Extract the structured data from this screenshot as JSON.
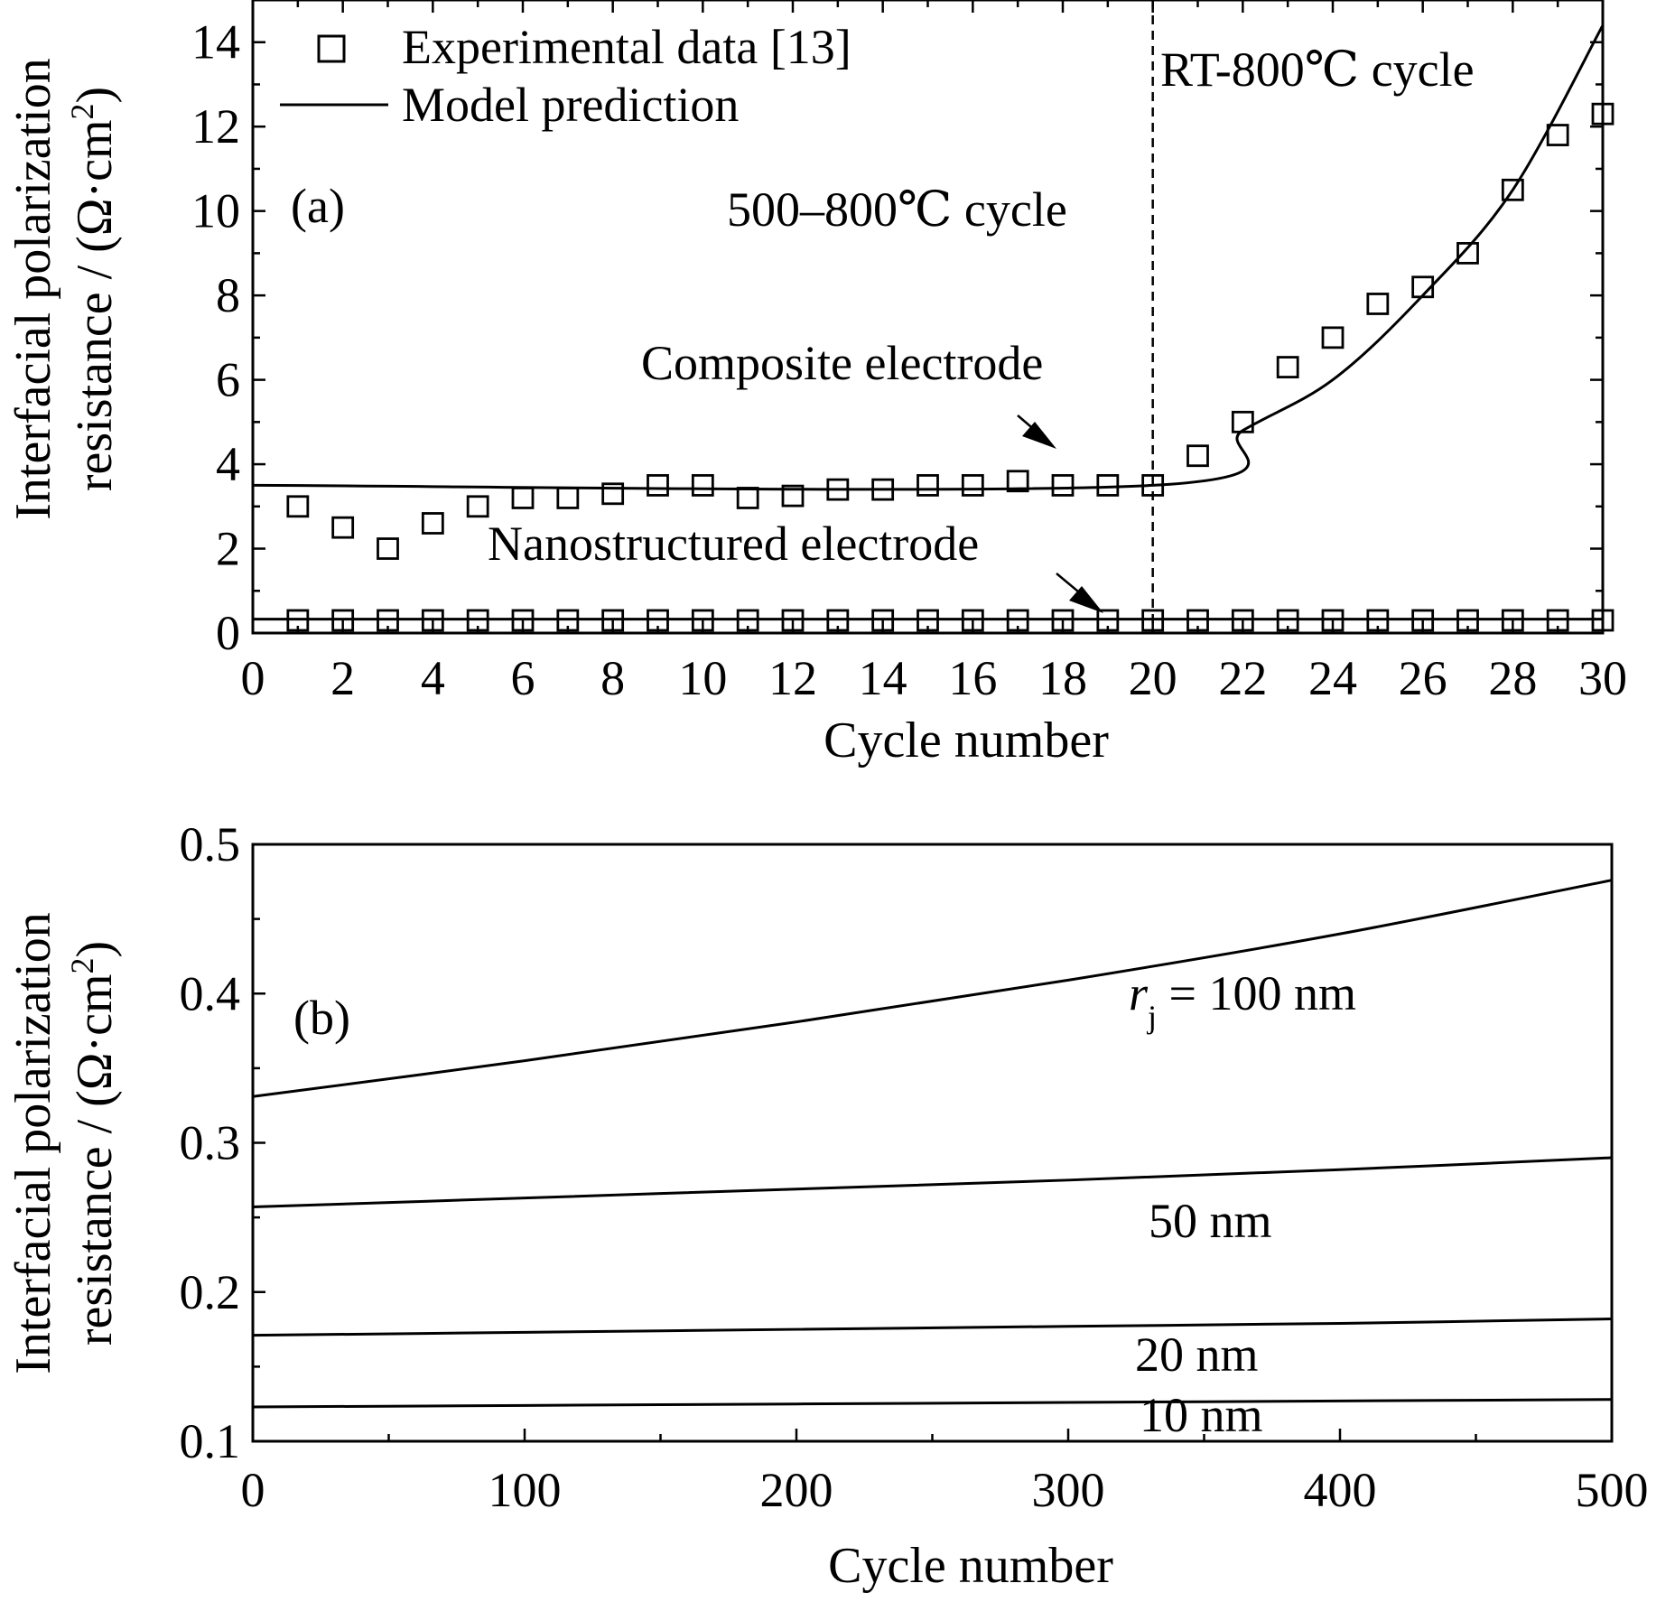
{
  "chart_data": [
    {
      "panel": "(a)",
      "type": "scatter",
      "xlabel": "Cycle number",
      "ylabel": "Interfacial polarization resistance / (Ω·cm²)",
      "ylabel_line1": "Interfacial polarization",
      "ylabel_line2": "resistance / (Ω·cm",
      "ylabel_sup": "2",
      "ylabel_close": ")",
      "xlim": [
        0,
        30
      ],
      "ylim": [
        0,
        15
      ],
      "xticks": [
        0,
        2,
        4,
        6,
        8,
        10,
        12,
        14,
        16,
        18,
        20,
        22,
        24,
        26,
        28,
        30
      ],
      "yticks": [
        0,
        2,
        4,
        6,
        8,
        10,
        12,
        14
      ],
      "legend": {
        "placement": "top-left",
        "entries": [
          "Experimental data [13]",
          "Model prediction"
        ]
      },
      "annotations": {
        "panel_label": "(a)",
        "rt_cycle": "RT-800℃ cycle",
        "cycle_500": "500–800℃ cycle",
        "composite": "Composite electrode",
        "nano": "Nanostructured electrode"
      },
      "divider_x": 20,
      "series": [
        {
          "name": "Composite electrode",
          "kind": "experimental",
          "x": [
            1,
            2,
            3,
            4,
            5,
            6,
            7,
            8,
            9,
            10,
            11,
            12,
            13,
            14,
            15,
            16,
            17,
            18,
            19,
            20,
            21,
            22,
            23,
            24,
            25,
            26,
            27,
            28,
            29,
            30
          ],
          "y": [
            3.0,
            2.5,
            2.0,
            2.6,
            3.0,
            3.2,
            3.2,
            3.3,
            3.5,
            3.5,
            3.2,
            3.25,
            3.4,
            3.4,
            3.5,
            3.5,
            3.6,
            3.5,
            3.5,
            3.5,
            4.2,
            5.0,
            6.3,
            7.0,
            7.8,
            8.2,
            9.0,
            10.5,
            11.8,
            12.3
          ]
        },
        {
          "name": "Nanostructured electrode",
          "kind": "experimental",
          "x": [
            1,
            2,
            3,
            4,
            5,
            6,
            7,
            8,
            9,
            10,
            11,
            12,
            13,
            14,
            15,
            16,
            17,
            18,
            19,
            20,
            21,
            22,
            23,
            24,
            25,
            26,
            27,
            28,
            29,
            30
          ],
          "y": [
            0.3,
            0.3,
            0.3,
            0.3,
            0.3,
            0.3,
            0.3,
            0.3,
            0.3,
            0.3,
            0.3,
            0.3,
            0.3,
            0.3,
            0.3,
            0.3,
            0.3,
            0.3,
            0.3,
            0.3,
            0.3,
            0.3,
            0.3,
            0.3,
            0.3,
            0.3,
            0.3,
            0.3,
            0.3,
            0.3
          ]
        },
        {
          "name": "Composite electrode model",
          "kind": "model",
          "x": [
            0,
            20,
            22,
            24,
            26,
            28,
            30
          ],
          "y": [
            3.5,
            3.5,
            4.8,
            6.0,
            8.0,
            10.5,
            14.4
          ]
        },
        {
          "name": "Nanostructured electrode model",
          "kind": "model",
          "x": [
            0,
            30
          ],
          "y": [
            0.33,
            0.33
          ]
        }
      ]
    },
    {
      "panel": "(b)",
      "type": "line",
      "xlabel": "Cycle number",
      "ylabel": "Interfacial polarization resistance / (Ω·cm²)",
      "ylabel_line1": "Interfacial polarization",
      "ylabel_line2": "resistance / (Ω·cm",
      "ylabel_sup": "2",
      "ylabel_close": ")",
      "xlim": [
        0,
        500
      ],
      "ylim": [
        0.1,
        0.5
      ],
      "xticks": [
        0,
        100,
        200,
        300,
        400,
        500
      ],
      "xticklabels": [
        "0",
        "100",
        "200",
        "300",
        "400",
        "500"
      ],
      "yticks": [
        0.1,
        0.2,
        0.3,
        0.4,
        0.5
      ],
      "yticklabels": [
        "0.1",
        "0.2",
        "0.3",
        "0.4",
        "0.5"
      ],
      "annotations": {
        "panel_label": "(b)",
        "r_symbol": "r",
        "r_sub": "j",
        "r_rest": " = 100 nm",
        "label_50": "50 nm",
        "label_20": "20 nm",
        "label_10": "10 nm"
      },
      "series": [
        {
          "name": "100 nm",
          "x": [
            0,
            100,
            200,
            300,
            400,
            500
          ],
          "y": [
            0.331,
            0.355,
            0.381,
            0.409,
            0.44,
            0.476
          ]
        },
        {
          "name": "50 nm",
          "x": [
            0,
            100,
            200,
            300,
            400,
            500
          ],
          "y": [
            0.257,
            0.263,
            0.269,
            0.275,
            0.282,
            0.29
          ]
        },
        {
          "name": "20 nm",
          "x": [
            0,
            100,
            200,
            300,
            400,
            500
          ],
          "y": [
            0.171,
            0.173,
            0.175,
            0.177,
            0.179,
            0.182
          ]
        },
        {
          "name": "10 nm",
          "x": [
            0,
            100,
            200,
            300,
            400,
            500
          ],
          "y": [
            0.123,
            0.124,
            0.125,
            0.126,
            0.127,
            0.128
          ]
        }
      ]
    }
  ]
}
